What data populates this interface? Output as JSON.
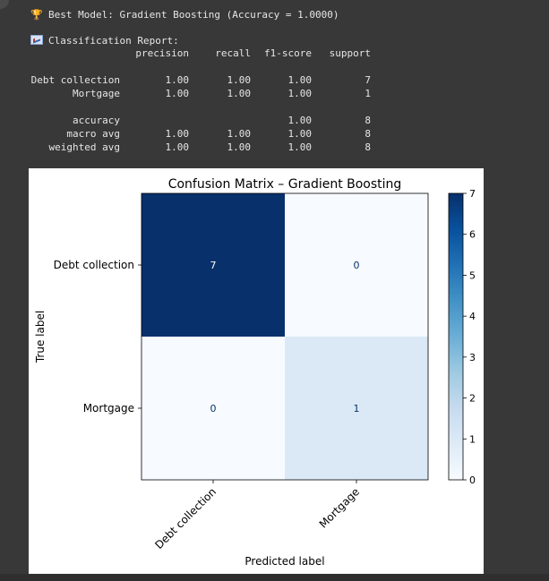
{
  "output": {
    "best_model_icon": "trophy-icon",
    "best_model_text": "Best Model: Gradient Boosting (Accuracy = 1.0000)",
    "report_icon": "chart-increasing-icon",
    "report_title": "Classification Report:",
    "report": {
      "headers": [
        "",
        "precision",
        "recall",
        "f1-score",
        "support"
      ],
      "rows": [
        [
          "Debt collection",
          "1.00",
          "1.00",
          "1.00",
          "7"
        ],
        [
          "Mortgage",
          "1.00",
          "1.00",
          "1.00",
          "1"
        ],
        [
          "",
          "",
          "",
          "",
          ""
        ],
        [
          "accuracy",
          "",
          "",
          "1.00",
          "8"
        ],
        [
          "macro avg",
          "1.00",
          "1.00",
          "1.00",
          "8"
        ],
        [
          "weighted avg",
          "1.00",
          "1.00",
          "1.00",
          "8"
        ]
      ]
    }
  },
  "chart_data": {
    "type": "heatmap",
    "title": "Confusion Matrix – Gradient Boosting",
    "xlabel": "Predicted label",
    "ylabel": "True label",
    "x_categories": [
      "Debt collection",
      "Mortgage"
    ],
    "y_categories": [
      "Debt collection",
      "Mortgage"
    ],
    "values": [
      [
        7,
        0
      ],
      [
        0,
        1
      ]
    ],
    "colormap": "Blues",
    "colorbar": {
      "min": 0,
      "max": 7,
      "ticks": [
        0,
        1,
        2,
        3,
        4,
        5,
        6,
        7
      ]
    },
    "colors": {
      "high": "#08306b",
      "mid": "#dbe9f6",
      "low": "#f7fbff"
    }
  }
}
